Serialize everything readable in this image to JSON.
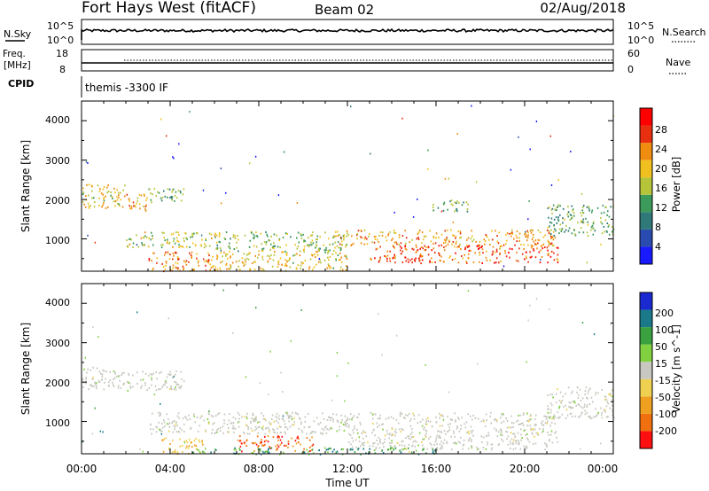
{
  "header": {
    "site": "Fort Hays West (fitACF)",
    "beam": "Beam 02",
    "date": "02/Aug/2018"
  },
  "nsky_panel": {
    "left_label": "N.Sky",
    "right_label": "N.Search",
    "left_ticks": [
      "10^5",
      "10^0"
    ],
    "right_ticks": [
      "10^5",
      "10^0"
    ]
  },
  "freq_panel": {
    "left_label_1": "Freq.",
    "left_label_2": "[MHz]",
    "right_label": "Nave",
    "left_ticks": [
      "18",
      "8"
    ],
    "right_ticks": [
      "60",
      "0"
    ]
  },
  "cpid_panel": {
    "label": "CPID",
    "program": "themis -3300 IF"
  },
  "x_axis": {
    "label": "Time UT",
    "ticks": [
      "00:00",
      "04:00",
      "08:00",
      "12:00",
      "16:00",
      "20:00",
      "00:00"
    ]
  },
  "power_panel": {
    "ylabel": "Slant Range [km]",
    "yticks": [
      "4000",
      "3000",
      "2000",
      "1000"
    ],
    "colorbar_label": "Power [dB]",
    "colorbar_ticks": [
      "28",
      "24",
      "20",
      "16",
      "12",
      "8",
      "4"
    ],
    "colors": [
      "#1a1aff",
      "#2a4bb0",
      "#2f7a78",
      "#3c9a5a",
      "#b6c43a",
      "#f0c020",
      "#f08c10",
      "#e83010",
      "#ff0000"
    ]
  },
  "velocity_panel": {
    "ylabel": "Slant Range [km]",
    "yticks": [
      "4000",
      "3000",
      "2000",
      "1000"
    ],
    "colorbar_label": "Velocity [m s^-1]",
    "colorbar_ticks": [
      "200",
      "100",
      "50",
      "15",
      "-15",
      "-50",
      "-100",
      "-200"
    ],
    "colors": [
      "#1a2ad0",
      "#1a7a8a",
      "#3aa040",
      "#80d040",
      "#c8c8c0",
      "#f0d050",
      "#f0a020",
      "#f07010",
      "#ff1010"
    ]
  },
  "chart_data": [
    {
      "type": "heatmap",
      "title": "Power [dB]",
      "xlabel": "Time UT",
      "ylabel": "Slant Range [km]",
      "xlim": [
        0,
        24
      ],
      "ylim": [
        180,
        4500
      ],
      "zlim": [
        0,
        30
      ],
      "scatter_regions": [
        {
          "t": [
            0.0,
            2.0
          ],
          "r": [
            1800,
            2400
          ],
          "z": 18
        },
        {
          "t": [
            2.0,
            3.0
          ],
          "r": [
            1700,
            2200
          ],
          "z": 20
        },
        {
          "t": [
            3.0,
            4.6
          ],
          "r": [
            1900,
            2300
          ],
          "z": 12
        },
        {
          "t": [
            2.0,
            6.0
          ],
          "r": [
            800,
            1200
          ],
          "z": 16
        },
        {
          "t": [
            3.0,
            6.0
          ],
          "r": [
            200,
            700
          ],
          "z": 22
        },
        {
          "t": [
            6.0,
            12.0
          ],
          "r": [
            700,
            1200
          ],
          "z": 14
        },
        {
          "t": [
            6.0,
            12.0
          ],
          "r": [
            200,
            700
          ],
          "z": 18
        },
        {
          "t": [
            11.5,
            21.5
          ],
          "r": [
            850,
            1250
          ],
          "z": 20
        },
        {
          "t": [
            13.0,
            21.5
          ],
          "r": [
            400,
            850
          ],
          "z": 24
        },
        {
          "t": [
            21.0,
            24.0
          ],
          "r": [
            1100,
            1900
          ],
          "z": 12
        },
        {
          "t": [
            15.8,
            17.5
          ],
          "r": [
            1700,
            2000
          ],
          "z": 12
        }
      ]
    },
    {
      "type": "heatmap",
      "title": "Velocity [m s^-1]",
      "xlabel": "Time UT",
      "ylabel": "Slant Range [km]",
      "xlim": [
        0,
        24
      ],
      "ylim": [
        180,
        4500
      ],
      "zlim": [
        -200,
        200
      ],
      "scatter_regions": [
        {
          "t": [
            0.0,
            2.0
          ],
          "r": [
            1800,
            2400
          ],
          "z": 0
        },
        {
          "t": [
            2.0,
            4.6
          ],
          "r": [
            1800,
            2300
          ],
          "z": 0
        },
        {
          "t": [
            3.5,
            5.5
          ],
          "r": [
            200,
            600
          ],
          "z": -60
        },
        {
          "t": [
            7.0,
            10.5
          ],
          "r": [
            250,
            650
          ],
          "z": -80
        },
        {
          "t": [
            3.0,
            21.5
          ],
          "r": [
            700,
            1250
          ],
          "z": 0
        },
        {
          "t": [
            12.0,
            21.5
          ],
          "r": [
            300,
            700
          ],
          "z": 0
        },
        {
          "t": [
            5.0,
            16.0
          ],
          "r": [
            180,
            350
          ],
          "z": 40
        },
        {
          "t": [
            21.0,
            24.0
          ],
          "r": [
            1100,
            1900
          ],
          "z": 0
        }
      ]
    }
  ]
}
